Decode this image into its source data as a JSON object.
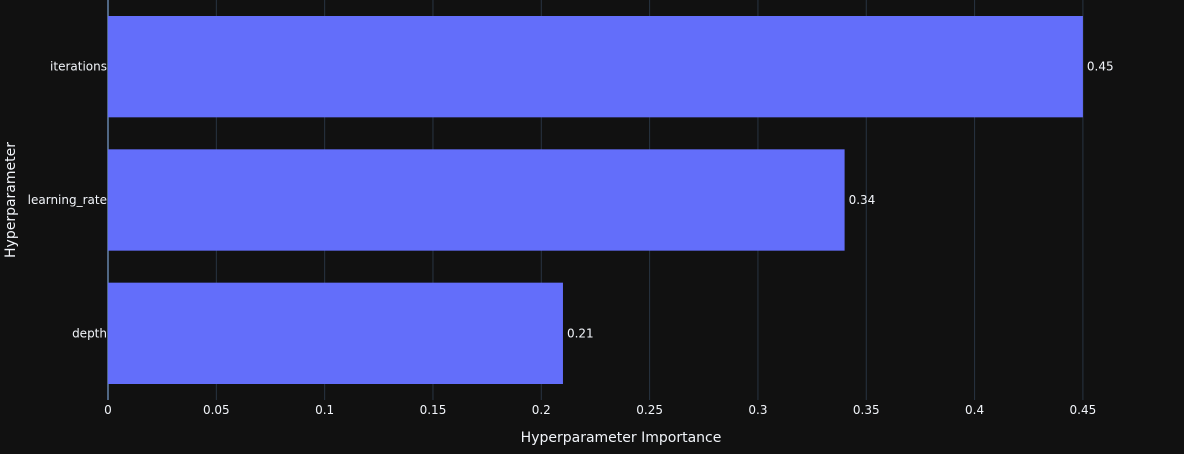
{
  "chart_data": {
    "type": "bar",
    "orientation": "horizontal",
    "categories": [
      "iterations",
      "learning_rate",
      "depth"
    ],
    "values": [
      0.45,
      0.34,
      0.21
    ],
    "value_labels": [
      "0.45",
      "0.34",
      "0.21"
    ],
    "xlabel": "Hyperparameter Importance",
    "ylabel": "Hyperparameter",
    "xlim": [
      0,
      0.4505
    ],
    "x_ticks": [
      0,
      0.05,
      0.1,
      0.15,
      0.2,
      0.25,
      0.3,
      0.35,
      0.4,
      0.45
    ],
    "x_tick_labels": [
      "0",
      "0.05",
      "0.1",
      "0.15",
      "0.2",
      "0.25",
      "0.3",
      "0.35",
      "0.4",
      "0.45"
    ],
    "grid": true,
    "colors": {
      "background": "#111111",
      "bar": "#636efa",
      "grid": "#283442",
      "axis_line": "#506784",
      "text": "#f2f5fa"
    }
  }
}
